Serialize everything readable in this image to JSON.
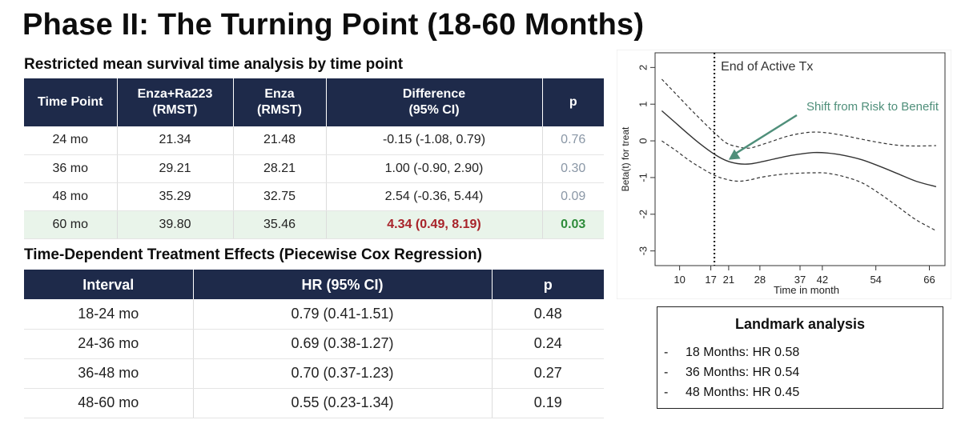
{
  "title": "Phase II: The Turning Point (18-60 Months)",
  "rmst": {
    "title": "Restricted mean survival time analysis by time point",
    "headers": [
      "Time Point",
      "Enza+Ra223\n(RMST)",
      "Enza\n(RMST)",
      "Difference\n(95% CI)",
      "p"
    ],
    "rows": [
      {
        "time": "24 mo",
        "combo": "21.34",
        "enza": "21.48",
        "diff": "-0.15 (-1.08, 0.79)",
        "p": "0.76"
      },
      {
        "time": "36 mo",
        "combo": "29.21",
        "enza": "28.21",
        "diff": "1.00 (-0.90, 2.90)",
        "p": "0.30"
      },
      {
        "time": "48 mo",
        "combo": "35.29",
        "enza": "32.75",
        "diff": "2.54 (-0.36, 5.44)",
        "p": "0.09"
      },
      {
        "time": "60 mo",
        "combo": "39.80",
        "enza": "35.46",
        "diff": "4.34 (0.49, 8.19)",
        "p": "0.03"
      }
    ]
  },
  "cox": {
    "title": "Time-Dependent Treatment Effects (Piecewise Cox Regression)",
    "headers": [
      "Interval",
      "HR (95% CI)",
      "p"
    ],
    "rows": [
      {
        "interval": "18-24 mo",
        "hr": "0.79 (0.41-1.51)",
        "p": "0.48"
      },
      {
        "interval": "24-36 mo",
        "hr": "0.69 (0.38-1.27)",
        "p": "0.24"
      },
      {
        "interval": "36-48 mo",
        "hr": "0.70 (0.37-1.23)",
        "p": "0.27"
      },
      {
        "interval": "48-60 mo",
        "hr": "0.55 (0.23-1.34)",
        "p": "0.19"
      }
    ]
  },
  "chart_data": {
    "type": "line",
    "xlabel": "Time in month",
    "ylabel": "Beta(t) for treat",
    "x_ticks": [
      10,
      17,
      21,
      28,
      37,
      42,
      54,
      66
    ],
    "y_ticks": [
      -3,
      -2,
      -1,
      0,
      1,
      2
    ],
    "ylim": [
      -3.4,
      2.4
    ],
    "grid": false,
    "series": [
      {
        "values": [
          0.82,
          0.5,
          0.18,
          -0.12,
          -0.38,
          -0.54,
          -0.62,
          -0.63,
          -0.58,
          -0.5,
          -0.42,
          -0.36,
          -0.32,
          -0.33,
          -0.4,
          -0.52,
          -0.7,
          -0.9,
          -1.1,
          -1.25
        ],
        "style": "solid"
      },
      {
        "values": [
          1.68,
          1.3,
          0.92,
          0.55,
          0.2,
          -0.06,
          -0.16,
          -0.2,
          -0.12,
          0.0,
          0.12,
          0.2,
          0.24,
          0.22,
          0.14,
          0.04,
          -0.05,
          -0.12,
          -0.14,
          -0.13
        ],
        "style": "dashed"
      },
      {
        "values": [
          0.0,
          -0.25,
          -0.52,
          -0.75,
          -0.95,
          -1.05,
          -1.1,
          -1.07,
          -1.0,
          -0.94,
          -0.9,
          -0.88,
          -0.87,
          -0.88,
          -0.98,
          -1.15,
          -1.45,
          -1.8,
          -2.15,
          -2.45
        ],
        "style": "dashed"
      }
    ],
    "x_months": [
      6,
      9,
      12,
      15,
      18,
      20.5,
      23,
      25.5,
      28,
      31,
      34,
      37,
      40,
      43,
      47,
      51,
      55,
      59,
      63,
      67.5
    ],
    "x_range": [
      4.5,
      69.5
    ],
    "vline": {
      "x": 17.8,
      "label": "End of Active Tx",
      "style": "dotted"
    },
    "annotation": {
      "text": "Shift from Risk to Benefit",
      "arrow_to_x": 21,
      "arrow_to_y": -0.6,
      "color": "#4f8f7a"
    }
  },
  "landmark": {
    "title": "Landmark analysis",
    "items": [
      {
        "dash": "-",
        "text": "18 Months: HR 0.58"
      },
      {
        "dash": "-",
        "text": "36 Months: HR 0.54"
      },
      {
        "dash": "-",
        "text": "48 Months: HR 0.45"
      }
    ]
  }
}
